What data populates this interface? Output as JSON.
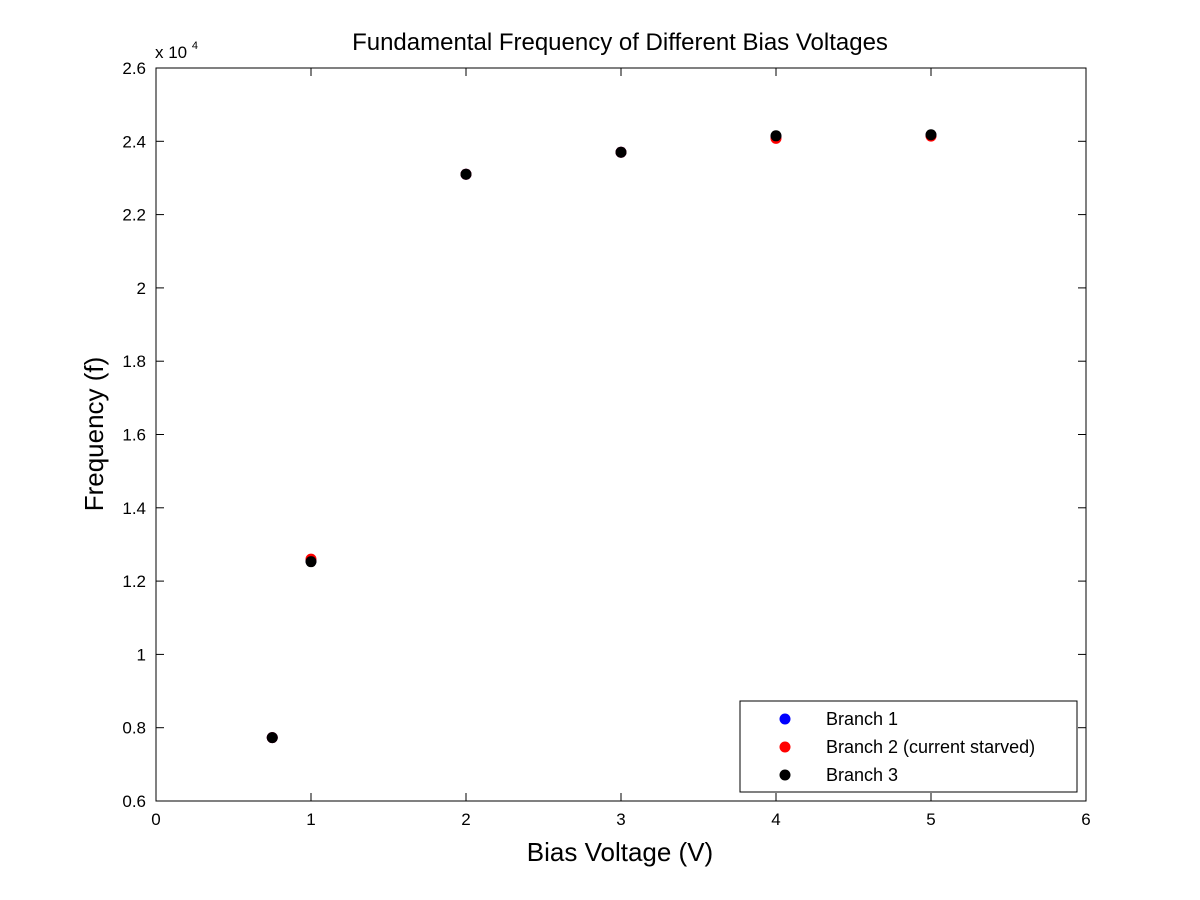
{
  "chart_data": {
    "type": "scatter",
    "title": "Fundamental Frequency of Different Bias Voltages",
    "xlabel": "Bias Voltage (V)",
    "ylabel": "Frequency (f)",
    "xlim": [
      0,
      6
    ],
    "ylim": [
      6000,
      26000
    ],
    "xticks": [
      0,
      1,
      2,
      3,
      4,
      5,
      6
    ],
    "yticks": [
      6000,
      8000,
      10000,
      12000,
      14000,
      16000,
      18000,
      20000,
      22000,
      24000,
      26000
    ],
    "xtick_labels": [
      "0",
      "1",
      "2",
      "3",
      "4",
      "5",
      "6"
    ],
    "ytick_labels": [
      "0.6",
      "0.8",
      "1",
      "1.2",
      "1.4",
      "1.6",
      "1.8",
      "2",
      "2.2",
      "2.4",
      "2.6"
    ],
    "y_multiplier_base": "x 10",
    "y_multiplier_exp": "4",
    "grid": false,
    "legend_position": "bottom-right",
    "series": [
      {
        "name": "Branch 1",
        "color": "#0000ff",
        "points": [
          [
            0.75,
            7730
          ],
          [
            1,
            12550
          ],
          [
            2,
            23100
          ],
          [
            3,
            23700
          ],
          [
            4,
            24120
          ],
          [
            5,
            24160
          ]
        ]
      },
      {
        "name": "Branch 2 (current starved)",
        "color": "#ff0000",
        "points": [
          [
            0.75,
            7730
          ],
          [
            1,
            12600
          ],
          [
            2,
            23100
          ],
          [
            3,
            23700
          ],
          [
            4,
            24080
          ],
          [
            5,
            24140
          ]
        ]
      },
      {
        "name": "Branch 3",
        "color": "#000000",
        "points": [
          [
            0.75,
            7730
          ],
          [
            1,
            12530
          ],
          [
            2,
            23100
          ],
          [
            3,
            23700
          ],
          [
            4,
            24150
          ],
          [
            5,
            24180
          ]
        ]
      }
    ]
  }
}
